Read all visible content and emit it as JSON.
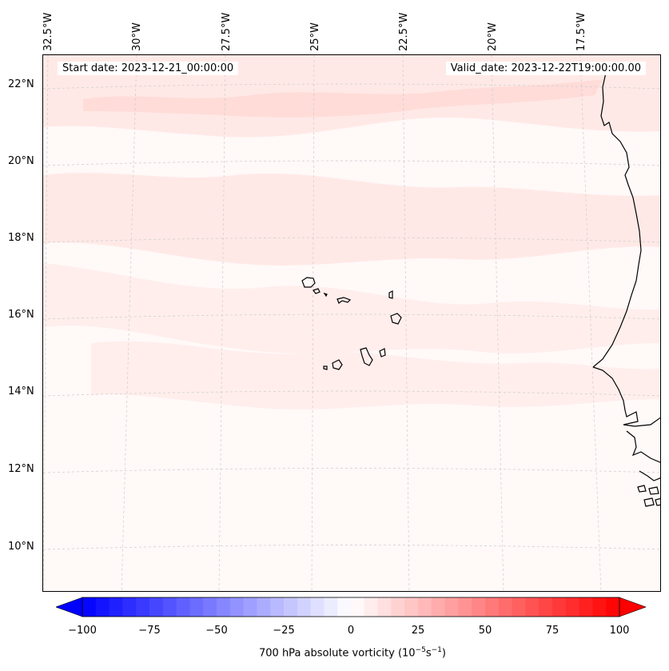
{
  "map": {
    "start_date": "Start date: 2023-12-21_00:00:00",
    "valid_date": "Valid_date: 2023-12-22T19:00:00.00",
    "longitude_labels": [
      "32.5°W",
      "30°W",
      "27.5°W",
      "25°W",
      "22.5°W",
      "20°W",
      "17.5°W"
    ],
    "latitude_labels": [
      "22°N",
      "20°N",
      "18°N",
      "16°N",
      "14°N",
      "12°N",
      "10°N"
    ],
    "features": [
      "Cape Verde islands",
      "West African coastline (Senegal, Gambia, Guinea-Bissau)"
    ]
  },
  "colorbar": {
    "vmin": -100,
    "vmax": 100,
    "ticks": [
      "−100",
      "−75",
      "−50",
      "−25",
      "0",
      "25",
      "50",
      "75",
      "100"
    ],
    "tick_values": [
      -100,
      -75,
      -50,
      -25,
      0,
      25,
      50,
      75,
      100
    ],
    "label_prefix": "700 hPa absolute vorticity (10",
    "label_exp1": "−5",
    "label_mid": "s",
    "label_exp2": "−1",
    "label_suffix": ")",
    "low_color": "#0000ff",
    "mid_color": "#ffffff",
    "high_color": "#ff0000"
  },
  "colors": {
    "background_light": "#fff9f8",
    "band_pink": "#ffe9e6",
    "band_pinker": "#ffdcd8",
    "coast": "#000000"
  }
}
